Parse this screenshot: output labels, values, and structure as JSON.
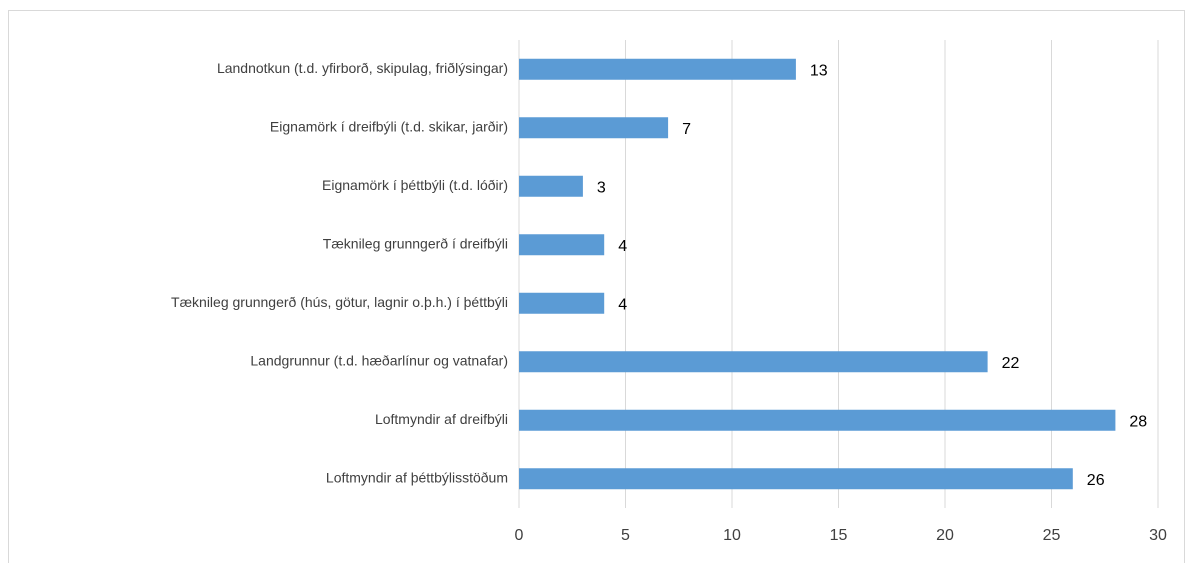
{
  "chart_data": {
    "type": "barh",
    "categories": [
      "Landnotkun (t.d. yfirborð, skipulag, friðlýsingar)",
      "Eignamörk í dreifbýli (t.d. skikar, jarðir)",
      "Eignamörk í þéttbýli (t.d. lóðir)",
      "Tæknileg grunngerð í dreifbýli",
      "Tæknileg grunngerð (hús, götur, lagnir o.þ.h.) í þéttbýli",
      "Landgrunnur (t.d. hæðarlínur og vatnafar)",
      "Loftmyndir af dreifbýli",
      "Loftmyndir af þéttbýlisstöðum"
    ],
    "values": [
      13,
      7,
      3,
      4,
      4,
      22,
      28,
      26
    ],
    "color": "#5b9bd5",
    "xlim": [
      0,
      30
    ],
    "xticks": [
      0,
      5,
      10,
      15,
      20,
      25,
      30
    ],
    "grid": true
  }
}
